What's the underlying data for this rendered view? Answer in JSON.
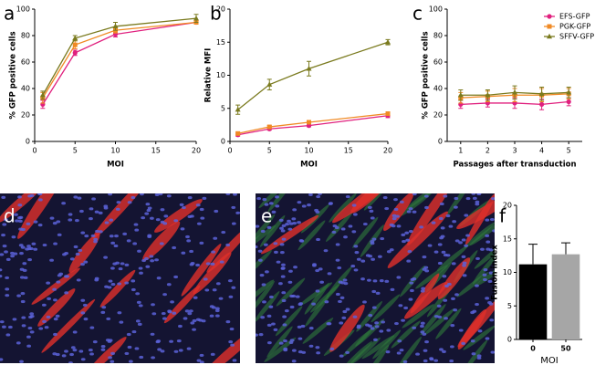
{
  "chart_data": [
    {
      "type": "line",
      "panel_label": "a",
      "ylabel": "% GFP positive cells",
      "xlabel": "MOI",
      "x": [
        1,
        5,
        10,
        20
      ],
      "xlim": [
        0,
        20
      ],
      "xticks": [
        0,
        5,
        10,
        15,
        20
      ],
      "ylim": [
        0,
        100
      ],
      "yticks": [
        0,
        20,
        40,
        60,
        80,
        100
      ],
      "series": [
        {
          "name": "EFS-GFP",
          "color": "#e0207e",
          "marker": "circle",
          "values": [
            28,
            67,
            81,
            90
          ],
          "errors": [
            3,
            2,
            2,
            1
          ]
        },
        {
          "name": "PGK-GFP",
          "color": "#f08a24",
          "marker": "square",
          "values": [
            33,
            73,
            84,
            90
          ],
          "errors": [
            4,
            3,
            2,
            1
          ]
        },
        {
          "name": "SFFV-GFP",
          "color": "#7a7a1e",
          "marker": "triangle",
          "values": [
            35,
            78,
            87,
            93
          ],
          "errors": [
            3,
            2,
            3,
            3
          ]
        }
      ]
    },
    {
      "type": "line",
      "panel_label": "b",
      "ylabel": "Relative MFI",
      "xlabel": "MOI",
      "x": [
        1,
        5,
        10,
        20
      ],
      "xlim": [
        0,
        20
      ],
      "xticks": [
        0,
        5,
        10,
        15,
        20
      ],
      "ylim": [
        0,
        20
      ],
      "yticks": [
        0,
        5,
        10,
        15,
        20
      ],
      "series": [
        {
          "name": "EFS-GFP",
          "color": "#e0207e",
          "marker": "circle",
          "values": [
            1.0,
            1.9,
            2.4,
            3.9
          ],
          "errors": [
            0.2,
            0.2,
            0.2,
            0.3
          ]
        },
        {
          "name": "PGK-GFP",
          "color": "#f08a24",
          "marker": "square",
          "values": [
            1.2,
            2.2,
            2.9,
            4.2
          ],
          "errors": [
            0.2,
            0.2,
            0.2,
            0.2
          ]
        },
        {
          "name": "SFFV-GFP",
          "color": "#7a7a1e",
          "marker": "triangle",
          "values": [
            4.8,
            8.6,
            11.0,
            15.0
          ],
          "errors": [
            0.7,
            0.8,
            1.1,
            0.4
          ]
        }
      ]
    },
    {
      "type": "line",
      "panel_label": "c",
      "ylabel": "% GFP positive cells",
      "xlabel": "Passages after transduction",
      "x": [
        1,
        2,
        3,
        4,
        5
      ],
      "xlim": [
        0.5,
        5.5
      ],
      "xticks": [
        1,
        2,
        3,
        4,
        5
      ],
      "ylim": [
        0,
        100
      ],
      "yticks": [
        0,
        20,
        40,
        60,
        80,
        100
      ],
      "legend": "upper right",
      "series": [
        {
          "name": "EFS-GFP",
          "color": "#e0207e",
          "marker": "circle",
          "values": [
            28,
            29,
            29,
            28,
            30
          ],
          "errors": [
            3,
            3,
            4,
            4,
            3
          ]
        },
        {
          "name": "PGK-GFP",
          "color": "#f08a24",
          "marker": "square",
          "values": [
            33,
            34,
            35,
            35,
            36
          ],
          "errors": [
            4,
            4,
            5,
            5,
            4
          ]
        },
        {
          "name": "SFFV-GFP",
          "color": "#7a7a1e",
          "marker": "triangle",
          "values": [
            35,
            35,
            37,
            36,
            37
          ],
          "errors": [
            4,
            4,
            5,
            5,
            4
          ]
        }
      ]
    },
    {
      "type": "bar",
      "panel_label": "f",
      "ylabel": "Fusion index",
      "xlabel": "MOI",
      "categories": [
        "0",
        "50"
      ],
      "values": [
        11.2,
        12.7
      ],
      "errors": [
        3.0,
        1.7
      ],
      "colors": [
        "#000000",
        "#a6a6a6"
      ],
      "ylim": [
        0,
        20
      ],
      "yticks": [
        0,
        5,
        10,
        15,
        20
      ]
    }
  ],
  "image_panels": [
    {
      "panel_label": "d"
    },
    {
      "panel_label": "e"
    }
  ]
}
